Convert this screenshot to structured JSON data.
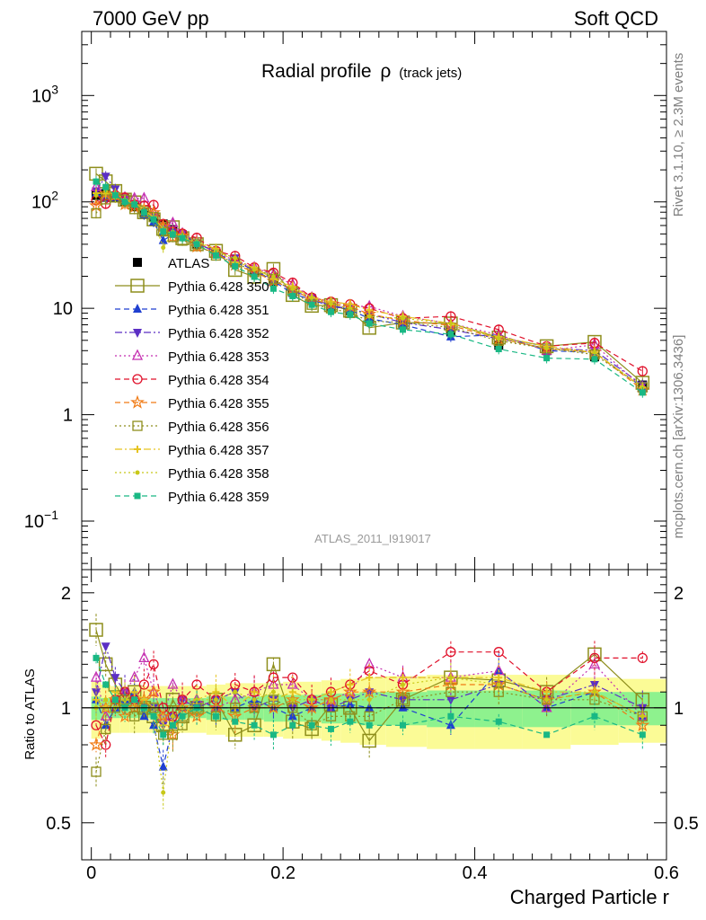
{
  "header": {
    "left": "7000 GeV pp",
    "right": "Soft QCD"
  },
  "side": {
    "upper": "Rivet 3.1.10, ≥ 2.3M events",
    "lower": "mcplots.cern.ch [arXiv:1306.3436]"
  },
  "chart_data": {
    "type": "line",
    "title_main": "Radial profile",
    "title_rho": "ρ",
    "title_sub": "(track jets)",
    "analysis_label": "ATLAS_2011_I919017",
    "xlabel": "Charged Particle r",
    "ylabel_ratio": "Ratio to ATLAS",
    "xlim": [
      -0.01,
      0.6
    ],
    "ylim_main": [
      0.035,
      4000
    ],
    "yscale_main": "log",
    "ylim_ratio": [
      0.4,
      2.3
    ],
    "yscale_ratio": "log",
    "x_ticks": [
      "0",
      "0.2",
      "0.4",
      "0.6"
    ],
    "y_ticks_main": [
      {
        "v": 0.1,
        "b": "10",
        "e": "−1"
      },
      {
        "v": 1,
        "b": "1",
        "e": ""
      },
      {
        "v": 10,
        "b": "10",
        "e": ""
      },
      {
        "v": 100,
        "b": "10",
        "e": "2"
      },
      {
        "v": 1000,
        "b": "10",
        "e": "3"
      }
    ],
    "y_ticks_ratio": [
      "0.5",
      "1",
      "2"
    ],
    "x": [
      0.005,
      0.015,
      0.025,
      0.035,
      0.045,
      0.055,
      0.065,
      0.075,
      0.085,
      0.095,
      0.11,
      0.13,
      0.15,
      0.17,
      0.19,
      0.21,
      0.23,
      0.25,
      0.27,
      0.29,
      0.325,
      0.375,
      0.425,
      0.475,
      0.525,
      0.575
    ],
    "atlas": [
      115,
      120,
      110,
      100,
      90,
      80,
      72,
      62,
      55,
      48,
      40,
      33,
      27,
      22,
      18,
      14.5,
      12,
      10.5,
      9.5,
      8.0,
      7.0,
      6.0,
      4.5,
      4.0,
      3.5,
      1.9
    ],
    "band_total": [
      0.17,
      0.15,
      0.14,
      0.14,
      0.14,
      0.14,
      0.14,
      0.14,
      0.14,
      0.14,
      0.14,
      0.15,
      0.16,
      0.16,
      0.16,
      0.17,
      0.17,
      0.18,
      0.19,
      0.2,
      0.21,
      0.22,
      0.22,
      0.22,
      0.2,
      0.19
    ],
    "band_stat": [
      0.07,
      0.06,
      0.06,
      0.06,
      0.06,
      0.06,
      0.06,
      0.06,
      0.06,
      0.06,
      0.06,
      0.07,
      0.07,
      0.07,
      0.08,
      0.08,
      0.08,
      0.09,
      0.09,
      0.1,
      0.1,
      0.11,
      0.11,
      0.11,
      0.1,
      0.1
    ],
    "series": [
      {
        "name": "ATLAS",
        "color": "#000000",
        "marker": "square-filled",
        "line": "none"
      },
      {
        "name": "Pythia 6.428 350",
        "color": "#8e8e1c",
        "marker": "square-open-large",
        "line": "solid",
        "ratio": [
          1.6,
          1.3,
          1.15,
          1.05,
          1.1,
          1.0,
          0.95,
          0.9,
          1.05,
          0.95,
          1.0,
          1.05,
          0.85,
          0.9,
          1.3,
          0.92,
          0.88,
          1.02,
          1.0,
          0.82,
          1.05,
          1.2,
          1.18,
          1.1,
          1.38,
          1.05
        ]
      },
      {
        "name": "Pythia 6.428 351",
        "color": "#1f3fd0",
        "marker": "triangle-up-filled",
        "line": "dash",
        "ratio": [
          1.05,
          0.9,
          1.0,
          1.05,
          1.1,
          0.95,
          0.9,
          0.7,
          0.9,
          1.0,
          1.05,
          1.0,
          1.0,
          1.05,
          1.0,
          0.95,
          1.0,
          1.0,
          1.02,
          1.0,
          1.0,
          0.9,
          1.25,
          1.0,
          1.1,
          0.95
        ]
      },
      {
        "name": "Pythia 6.428 352",
        "color": "#5b2fc4",
        "marker": "triangle-down-filled",
        "line": "dashdot",
        "ratio": [
          1.1,
          1.45,
          1.2,
          1.1,
          1.05,
          1.0,
          1.0,
          0.9,
          0.95,
          1.05,
          1.0,
          1.05,
          1.1,
          1.0,
          1.05,
          1.0,
          1.05,
          1.0,
          1.05,
          1.1,
          1.05,
          1.05,
          1.15,
          1.05,
          1.15,
          1.0
        ]
      },
      {
        "name": "Pythia 6.428 353",
        "color": "#c42fb0",
        "marker": "triangle-up-open",
        "line": "dot",
        "ratio": [
          1.2,
          0.95,
          1.05,
          1.1,
          1.2,
          1.35,
          1.1,
          0.95,
          1.15,
          1.05,
          1.05,
          1.0,
          1.05,
          1.1,
          1.15,
          1.15,
          1.05,
          1.05,
          1.1,
          1.3,
          1.2,
          1.2,
          1.25,
          1.0,
          1.3,
          0.95
        ]
      },
      {
        "name": "Pythia 6.428 354",
        "color": "#e0102a",
        "marker": "circle-open",
        "line": "dash",
        "ratio": [
          0.9,
          0.8,
          1.05,
          1.1,
          1.05,
          1.15,
          1.3,
          1.0,
          0.95,
          1.05,
          1.15,
          1.05,
          1.15,
          1.1,
          1.2,
          1.2,
          1.05,
          1.1,
          1.15,
          1.25,
          1.15,
          1.4,
          1.4,
          1.1,
          1.35,
          1.35
        ]
      },
      {
        "name": "Pythia 6.428 355",
        "color": "#f07a14",
        "marker": "star-open",
        "line": "dash",
        "ratio": [
          0.8,
          1.0,
          1.05,
          0.95,
          1.0,
          1.05,
          1.1,
          0.95,
          0.85,
          1.0,
          0.95,
          1.0,
          0.95,
          1.0,
          1.0,
          1.05,
          1.0,
          1.05,
          1.1,
          1.1,
          1.1,
          1.15,
          1.15,
          1.05,
          1.1,
          0.9
        ]
      },
      {
        "name": "Pythia 6.428 356",
        "color": "#8e8e1c",
        "marker": "square-open",
        "line": "dot",
        "ratio": [
          0.68,
          0.88,
          1.0,
          1.05,
          0.95,
          1.0,
          1.0,
          0.85,
          0.85,
          0.9,
          1.0,
          0.95,
          1.0,
          1.0,
          1.05,
          1.0,
          0.9,
          0.95,
          0.95,
          0.95,
          1.05,
          1.1,
          1.1,
          1.05,
          1.05,
          0.95
        ]
      },
      {
        "name": "Pythia 6.428 357",
        "color": "#e6c422",
        "marker": "cross",
        "line": "dashdot",
        "ratio": [
          1.05,
          1.0,
          1.1,
          1.05,
          1.1,
          1.05,
          1.0,
          0.9,
          0.9,
          0.95,
          1.05,
          1.1,
          1.0,
          1.1,
          1.05,
          1.1,
          1.05,
          1.1,
          1.15,
          1.2,
          1.2,
          1.2,
          1.2,
          1.1,
          1.1,
          0.95
        ]
      },
      {
        "name": "Pythia 6.428 358",
        "color": "#c8c818",
        "marker": "dot",
        "line": "dot",
        "ratio": [
          1.0,
          1.05,
          1.0,
          1.05,
          1.05,
          1.0,
          0.95,
          0.6,
          0.95,
          1.0,
          1.05,
          1.05,
          1.1,
          1.05,
          1.1,
          1.05,
          1.05,
          1.05,
          1.05,
          1.05,
          1.15,
          1.2,
          1.15,
          1.05,
          1.1,
          0.95
        ]
      },
      {
        "name": "Pythia 6.428 359",
        "color": "#19b884",
        "marker": "square-small-filled",
        "line": "dash",
        "ratio": [
          1.35,
          1.15,
          1.05,
          1.0,
          1.05,
          1.0,
          0.95,
          0.85,
          0.9,
          0.95,
          1.0,
          0.95,
          0.92,
          0.9,
          0.85,
          0.9,
          0.9,
          0.88,
          0.92,
          0.9,
          0.9,
          0.95,
          0.92,
          0.85,
          0.95,
          0.85
        ]
      }
    ]
  }
}
